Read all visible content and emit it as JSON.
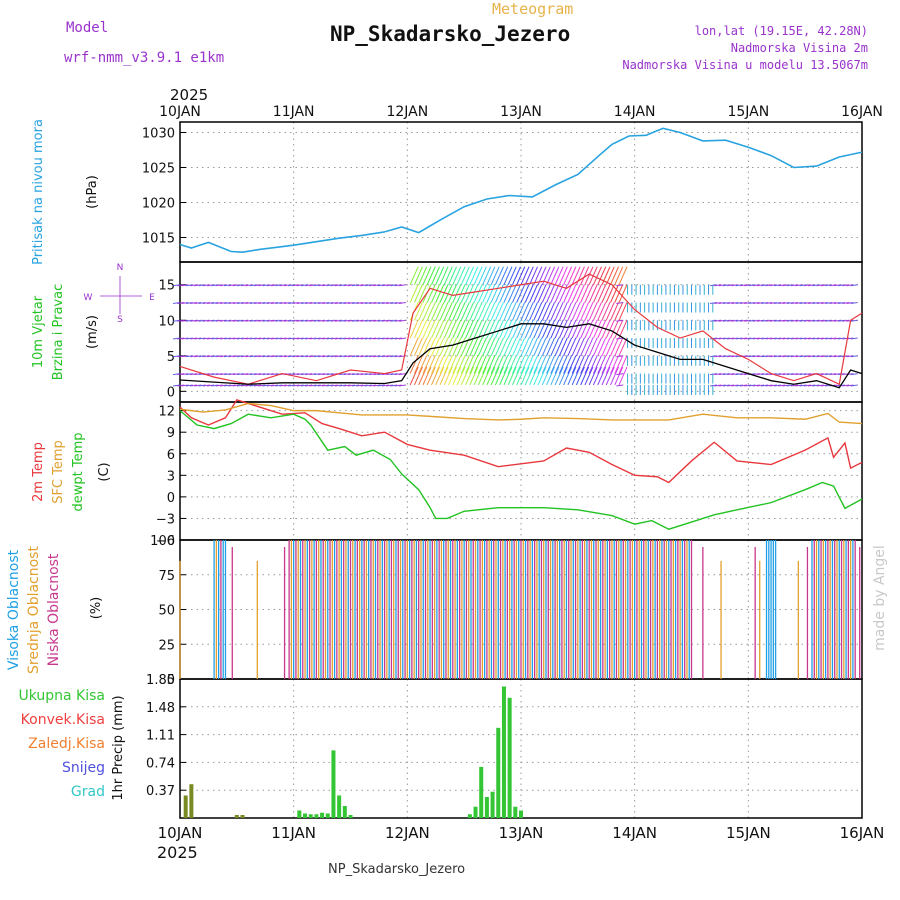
{
  "header": {
    "meteogram": "Meteogram",
    "title": "NP_Skadarsko_Jezero",
    "model_label": "Model",
    "model_name": "wrf-nmm_v3.9.1 e1km",
    "lonlat": "lon,lat (19.15E, 42.28N)",
    "altitude": "Nadmorska Visina 2m",
    "model_altitude": "Nadmorska Visina u modelu 13.5067m",
    "watermark": "made by Angel",
    "footer": "NP_Skadarsko_Jezero"
  },
  "colors": {
    "pressure": "#29a3e0",
    "t2m": "#e8383d",
    "sfc": "#e0a030",
    "dew": "#22c322",
    "high_cloud": "#1fa0e6",
    "mid_cloud": "#e3a02e",
    "low_cloud": "#c8378e",
    "precip": "#33c533",
    "conv": "#f04040",
    "freezing": "#f08030",
    "snow": "#5050e0",
    "grad": "#33c7c7"
  },
  "chart_data": [
    {
      "type": "line",
      "panel": "pressure",
      "year": "2025",
      "x_labels": [
        "10JAN",
        "11JAN",
        "12JAN",
        "13JAN",
        "14JAN",
        "15JAN",
        "16JAN"
      ],
      "ylabel": "Pritisak na nivou mora",
      "unit": "(hPa)",
      "yticks": [
        "1015",
        "1020",
        "1025",
        "1030"
      ],
      "ylim": [
        1011.5,
        1031.5
      ],
      "series": [
        {
          "x": [
            0,
            0.1,
            0.25,
            0.45,
            0.55,
            0.7,
            1.0,
            1.2,
            1.4,
            1.6,
            1.8,
            1.95,
            2.1,
            2.3,
            2.5,
            2.7,
            2.9,
            3.1,
            3.3,
            3.5,
            3.7,
            3.8,
            3.95,
            4.1,
            4.25,
            4.4,
            4.6,
            4.8,
            5.0,
            5.2,
            5.4,
            5.6,
            5.8,
            6.0
          ],
          "values": [
            1014,
            1013.5,
            1014.3,
            1013,
            1012.9,
            1013.3,
            1013.9,
            1014.4,
            1014.9,
            1015.3,
            1015.8,
            1016.5,
            1015.7,
            1017.6,
            1019.4,
            1020.5,
            1021,
            1020.8,
            1022.5,
            1024,
            1026.9,
            1028.3,
            1029.5,
            1029.6,
            1030.6,
            1030,
            1028.8,
            1028.9,
            1027.9,
            1026.7,
            1025,
            1025.2,
            1026.5,
            1027.2
          ]
        }
      ]
    },
    {
      "type": "line",
      "panel": "wind",
      "ylabel": "10m Vjetar Brzina i Pravac",
      "unit": "(m/s)",
      "yticks": [
        "0",
        "5",
        "10",
        "15"
      ],
      "ylim": [
        -1.5,
        18.2
      ],
      "compass": [
        "N",
        "E",
        "S",
        "W"
      ],
      "series": [
        {
          "name": "speed",
          "x": [
            0,
            0.3,
            0.6,
            0.9,
            1.2,
            1.5,
            1.8,
            1.95,
            2.05,
            2.2,
            2.4,
            2.6,
            2.8,
            3.0,
            3.2,
            3.4,
            3.6,
            3.8,
            4.0,
            4.2,
            4.4,
            4.6,
            4.8,
            5.0,
            5.2,
            5.4,
            5.6,
            5.8,
            5.9,
            6.0
          ],
          "values": [
            1.6,
            1.3,
            1.0,
            1.2,
            1.2,
            1.2,
            1.1,
            1.5,
            4.0,
            6.0,
            6.5,
            7.5,
            8.5,
            9.5,
            9.5,
            9.0,
            9.5,
            8.5,
            6.5,
            5.5,
            4.5,
            4.5,
            3.5,
            2.5,
            1.5,
            1.0,
            1.5,
            0.5,
            3.0,
            2.5
          ]
        },
        {
          "name": "gust",
          "x": [
            0,
            0.3,
            0.6,
            0.9,
            1.2,
            1.5,
            1.8,
            1.95,
            2.05,
            2.2,
            2.4,
            2.6,
            2.8,
            3.0,
            3.2,
            3.4,
            3.6,
            3.8,
            4.0,
            4.2,
            4.4,
            4.6,
            4.8,
            5.0,
            5.2,
            5.4,
            5.6,
            5.8,
            5.9,
            6.0
          ],
          "values": [
            3.5,
            2.0,
            1.0,
            2.5,
            1.5,
            3.0,
            2.5,
            3.0,
            11.0,
            14.5,
            13.5,
            14.0,
            14.5,
            15.0,
            15.5,
            14.5,
            16.5,
            15.0,
            11.5,
            9.0,
            7.5,
            8.5,
            6.0,
            4.5,
            2.5,
            1.5,
            2.5,
            1.0,
            10.0,
            11.0
          ]
        }
      ]
    },
    {
      "type": "line",
      "panel": "temperature",
      "unit": "(C)",
      "yticks": [
        "-6",
        "-3",
        "0",
        "3",
        "6",
        "9",
        "12"
      ],
      "ylim": [
        -6,
        13.2
      ],
      "series": [
        {
          "name": "2m Temp",
          "x": [
            0,
            0.1,
            0.25,
            0.4,
            0.5,
            0.7,
            0.9,
            1.1,
            1.25,
            1.4,
            1.6,
            1.8,
            2.0,
            2.2,
            2.5,
            2.8,
            3.0,
            3.2,
            3.4,
            3.6,
            3.8,
            4.0,
            4.2,
            4.3,
            4.5,
            4.7,
            4.9,
            5.2,
            5.5,
            5.7,
            5.75,
            5.85,
            5.9,
            6.0
          ],
          "values": [
            12.5,
            11,
            10,
            11,
            13.5,
            12.5,
            11.5,
            11.7,
            10.2,
            9.5,
            8.5,
            9,
            7.3,
            6.5,
            5.8,
            4.2,
            4.6,
            5,
            6.8,
            6.2,
            4.5,
            3,
            2.8,
            2,
            5,
            7.6,
            5,
            4.5,
            6.5,
            8.2,
            5.5,
            7.5,
            4,
            4.8
          ]
        },
        {
          "name": "SFC Temp",
          "x": [
            0,
            0.1,
            0.2,
            0.4,
            0.6,
            0.8,
            1.0,
            1.2,
            1.4,
            1.6,
            1.8,
            2.0,
            2.2,
            2.5,
            2.8,
            3.0,
            3.2,
            3.5,
            3.8,
            4.0,
            4.3,
            4.6,
            4.9,
            5.2,
            5.5,
            5.7,
            5.8,
            5.9,
            6.0
          ],
          "values": [
            12.2,
            12,
            11.8,
            12.1,
            13,
            12.7,
            12,
            12,
            11.7,
            11.4,
            11.4,
            11.4,
            11.2,
            10.9,
            10.7,
            10.8,
            11,
            10.9,
            10.7,
            10.7,
            10.7,
            11.5,
            11,
            11,
            10.8,
            11.6,
            10.4,
            10.3,
            10.2
          ]
        },
        {
          "name": "dewpt Temp",
          "x": [
            0,
            0.15,
            0.3,
            0.45,
            0.6,
            0.8,
            1.0,
            1.1,
            1.15,
            1.3,
            1.45,
            1.55,
            1.7,
            1.85,
            1.95,
            2.1,
            2.2,
            2.25,
            2.35,
            2.5,
            2.8,
            3.2,
            3.5,
            3.8,
            4.0,
            4.15,
            4.3,
            4.5,
            4.7,
            4.9,
            5.2,
            5.5,
            5.65,
            5.75,
            5.85,
            6.0
          ],
          "values": [
            12,
            10,
            9.5,
            10.2,
            11.5,
            11,
            11.5,
            10.8,
            10,
            6.5,
            7,
            5.8,
            6.5,
            5.2,
            3.2,
            1,
            -1.5,
            -3,
            -3,
            -2,
            -1.5,
            -1.5,
            -1.8,
            -2.6,
            -3.8,
            -3.3,
            -4.5,
            -3.5,
            -2.5,
            -1.8,
            -0.8,
            1,
            2,
            1.5,
            -1.6,
            -0.3
          ]
        }
      ]
    },
    {
      "type": "bar",
      "panel": "clouds",
      "unit": "(%)",
      "yticks": [
        "0",
        "25",
        "50",
        "75",
        "100"
      ],
      "ylim": [
        0,
        100
      ],
      "labels": [
        "Visoka Oblacnost",
        "Srednja Oblacnost",
        "Niska Oblacnost"
      ]
    },
    {
      "type": "bar",
      "panel": "precip",
      "yticks": [
        "0.37",
        "0.74",
        "1.11",
        "1.48",
        "1.85"
      ],
      "ylim": [
        0,
        1.85
      ],
      "ylabel": "1hr Precip (mm)",
      "legend": [
        "Ukupna Kisa",
        "Konvek.Kisa",
        "Zaledj.Kisa",
        "Snijeg",
        "Grad"
      ],
      "x": [
        0.05,
        0.1,
        0.5,
        0.55,
        1.05,
        1.1,
        1.15,
        1.2,
        1.25,
        1.3,
        1.35,
        1.4,
        1.45,
        1.5,
        2.55,
        2.6,
        2.65,
        2.7,
        2.75,
        2.8,
        2.85,
        2.9,
        2.95,
        3.0
      ],
      "values": [
        0.3,
        0.45,
        0.04,
        0.04,
        0.1,
        0.06,
        0.05,
        0.05,
        0.07,
        0.06,
        0.9,
        0.3,
        0.16,
        0.04,
        0.05,
        0.15,
        0.68,
        0.28,
        0.35,
        1.2,
        1.75,
        1.6,
        0.15,
        0.1
      ]
    }
  ]
}
